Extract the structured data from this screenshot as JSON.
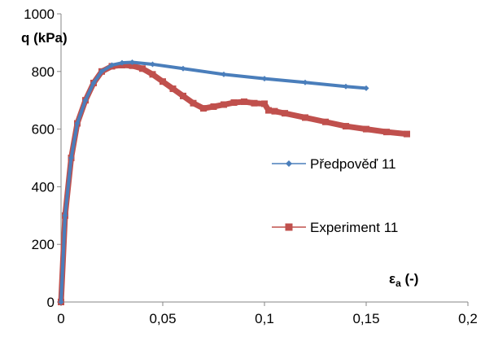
{
  "chart_data": {
    "type": "line",
    "ylabel": "q (kPa)",
    "xlabel_main": "ε",
    "xlabel_sub": "a",
    "xlabel_suffix": " (-)",
    "xlim": [
      0,
      0.2
    ],
    "ylim": [
      0,
      1000
    ],
    "x_ticks": [
      "0",
      "0,05",
      "0,1",
      "0,15",
      "0,2"
    ],
    "y_ticks": [
      "0",
      "200",
      "400",
      "600",
      "800",
      "1000"
    ],
    "grid": false,
    "legend_position": "right",
    "series": [
      {
        "name": "Předpověď 11",
        "color": "#4a7ebb",
        "marker": "diamond",
        "x": [
          0,
          0.002,
          0.005,
          0.008,
          0.012,
          0.016,
          0.02,
          0.025,
          0.03,
          0.035,
          0.045,
          0.06,
          0.08,
          0.1,
          0.12,
          0.14,
          0.15
        ],
        "y": [
          0,
          300,
          500,
          620,
          700,
          760,
          800,
          822,
          830,
          832,
          825,
          810,
          790,
          775,
          762,
          748,
          742
        ]
      },
      {
        "name": "Experiment 11",
        "color": "#c0504d",
        "marker": "square",
        "x": [
          0,
          0.002,
          0.005,
          0.008,
          0.012,
          0.016,
          0.02,
          0.025,
          0.03,
          0.035,
          0.04,
          0.045,
          0.05,
          0.055,
          0.06,
          0.065,
          0.07,
          0.075,
          0.08,
          0.085,
          0.09,
          0.095,
          0.1,
          0.102,
          0.105,
          0.11,
          0.12,
          0.13,
          0.14,
          0.15,
          0.16,
          0.17
        ],
        "y": [
          0,
          300,
          500,
          620,
          700,
          760,
          800,
          818,
          822,
          820,
          810,
          790,
          765,
          740,
          715,
          690,
          672,
          678,
          685,
          692,
          695,
          690,
          688,
          665,
          662,
          655,
          640,
          625,
          610,
          600,
          590,
          583
        ]
      }
    ]
  }
}
